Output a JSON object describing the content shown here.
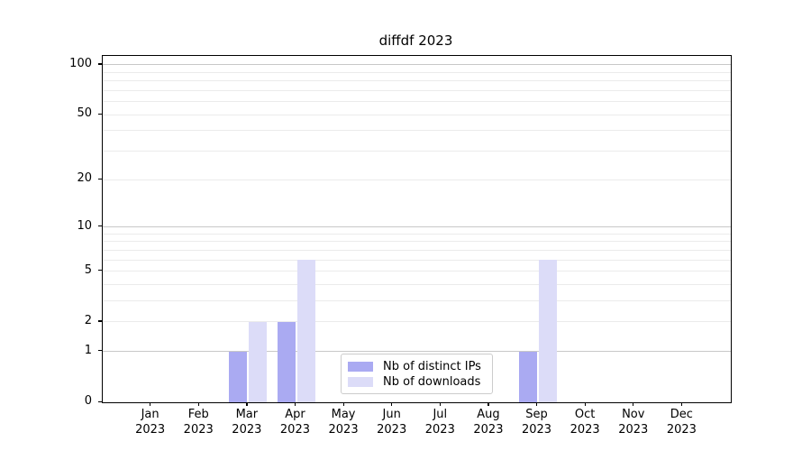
{
  "title": "diffdf 2023",
  "chart_data": {
    "type": "bar",
    "title": "diffdf 2023",
    "categories": [
      "Jan",
      "Feb",
      "Mar",
      "Apr",
      "May",
      "Jun",
      "Jul",
      "Aug",
      "Sep",
      "Oct",
      "Nov",
      "Dec"
    ],
    "x_year_label": "2023",
    "series": [
      {
        "name": "Nb of distinct IPs",
        "color": "#aaaaf2",
        "values": [
          0,
          0,
          1,
          2,
          0,
          0,
          0,
          0,
          1,
          0,
          0,
          0
        ]
      },
      {
        "name": "Nb of downloads",
        "color": "#dcdcf8",
        "values": [
          0,
          0,
          2,
          6,
          0,
          0,
          0,
          0,
          6,
          0,
          0,
          0
        ]
      }
    ],
    "xlabel": "",
    "ylabel": "",
    "y_scale": "log1p",
    "ylim": [
      0,
      113
    ],
    "y_tick_values": [
      0,
      1,
      2,
      5,
      10,
      20,
      50,
      100
    ],
    "y_major_gridlines": [
      1,
      10,
      100
    ],
    "y_minor_gridlines": [
      2,
      3,
      4,
      5,
      6,
      7,
      8,
      9,
      20,
      30,
      40,
      50,
      60,
      70,
      80,
      90
    ],
    "grid": true,
    "legend_position": "lower center",
    "colors": {
      "grid_major": "#c8c8c8",
      "grid_minor": "#ebebeb",
      "spine": "#000000",
      "text": "#000000",
      "legend_border": "#cccccc"
    }
  }
}
